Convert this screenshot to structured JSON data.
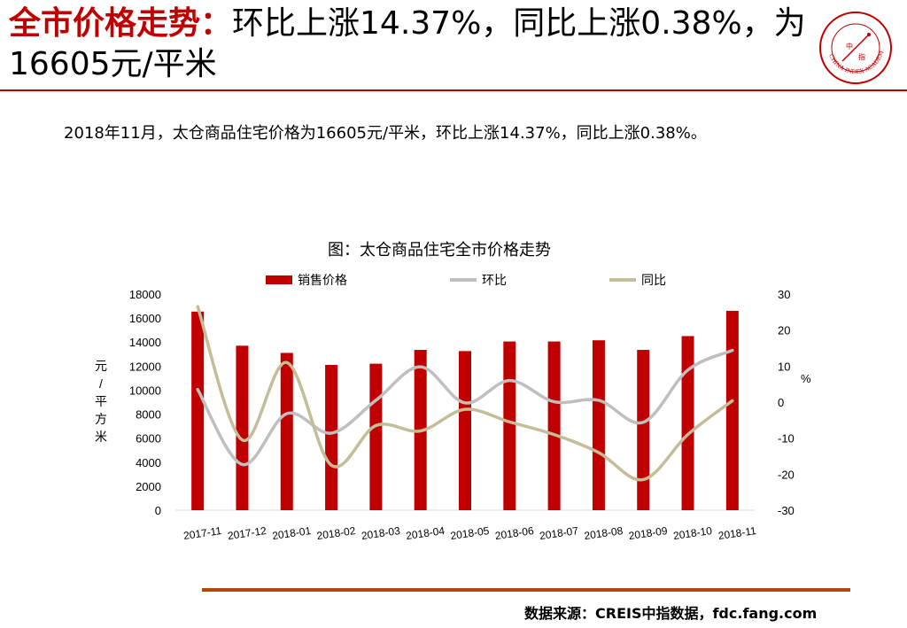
{
  "header": {
    "title_red": "全市价格走势：",
    "title_black": "环比上涨14.37%，同比上涨0.38%，为16605元/平米",
    "logo_text": "CHINA INDEX ACADEMY"
  },
  "summary": "2018年11月，太仓商品住宅价格为16605元/平米，环比上涨14.37%，同比上涨0.38%。",
  "chart_data": {
    "type": "bar",
    "title": "图：太仓商品住宅全市价格走势",
    "categories": [
      "2017-11",
      "2017-12",
      "2018-01",
      "2018-02",
      "2018-03",
      "2018-04",
      "2018-05",
      "2018-06",
      "2018-07",
      "2018-08",
      "2018-09",
      "2018-10",
      "2018-11"
    ],
    "series": [
      {
        "name": "销售价格",
        "type": "bar",
        "axis": "left",
        "color": "#c00000",
        "values": [
          16540,
          13700,
          13100,
          12100,
          12200,
          13350,
          13250,
          14050,
          14050,
          14150,
          13350,
          14500,
          16605
        ]
      },
      {
        "name": "环比",
        "type": "line",
        "axis": "right",
        "color": "#bfbfbf",
        "values": [
          3.5,
          -17.3,
          -3.2,
          -8.6,
          0.5,
          9.8,
          -0.2,
          6.0,
          0.1,
          0.5,
          -5.6,
          8.9,
          14.37
        ]
      },
      {
        "name": "同比",
        "type": "line",
        "axis": "right",
        "color": "#c4bd97",
        "values": [
          26.5,
          -10.5,
          11.0,
          -17.5,
          -6.5,
          -8.0,
          -2.0,
          -5.5,
          -9.0,
          -14.0,
          -21.5,
          -9.0,
          0.38
        ]
      }
    ],
    "ylabel_left": "元/平方米",
    "ylabel_right": "%",
    "ylim_left": [
      0,
      18000
    ],
    "yticks_left": [
      "18000",
      "16000",
      "14000",
      "12000",
      "10000",
      "8000",
      "6000",
      "4000",
      "2000",
      "0"
    ],
    "ylim_right": [
      -30,
      30
    ],
    "yticks_right": [
      "30",
      "20",
      "10",
      "0",
      "-10",
      "-20",
      "-30"
    ],
    "legend_position": "top",
    "grid": false
  },
  "footer": {
    "source": "数据来源：CREIS中指数据，fdc.fang.com"
  },
  "colors": {
    "accent_red": "#c00000",
    "footer_rule": "#b5450c"
  }
}
